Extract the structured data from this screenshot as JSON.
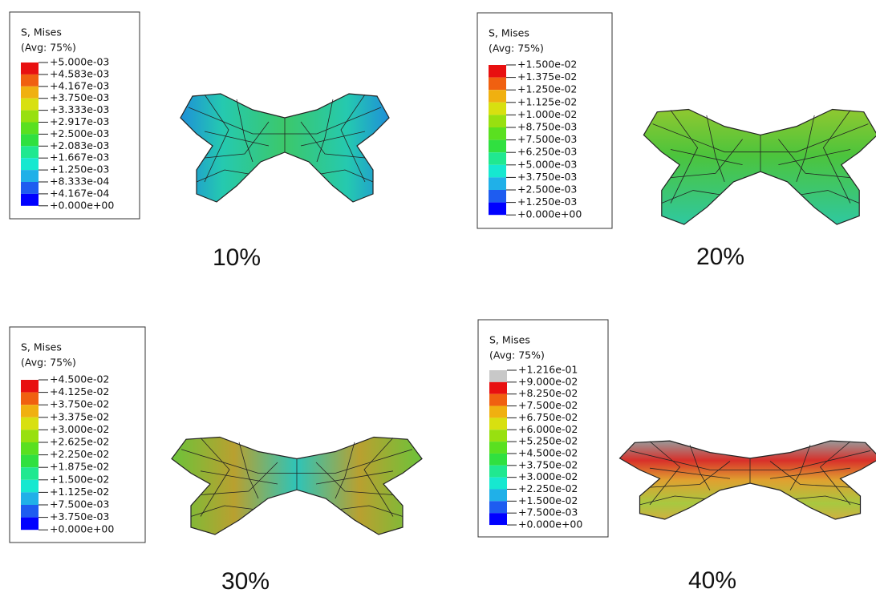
{
  "panels": [
    {
      "legend_title": "S, Mises",
      "legend_subtitle": "(Avg: 75%)",
      "caption": "10%",
      "labels": [
        "+5.000e-03",
        "+4.583e-03",
        "+4.167e-03",
        "+3.750e-03",
        "+3.333e-03",
        "+2.917e-03",
        "+2.500e-03",
        "+2.083e-03",
        "+1.667e-03",
        "+1.250e-03",
        "+8.333e-04",
        "+4.167e-04",
        "+0.000e+00"
      ]
    },
    {
      "legend_title": "S, Mises",
      "legend_subtitle": "(Avg: 75%)",
      "caption": "20%",
      "labels": [
        "+1.500e-02",
        "+1.375e-02",
        "+1.250e-02",
        "+1.125e-02",
        "+1.000e-02",
        "+8.750e-03",
        "+7.500e-03",
        "+6.250e-03",
        "+5.000e-03",
        "+3.750e-03",
        "+2.500e-03",
        "+1.250e-03",
        "+0.000e+00"
      ]
    },
    {
      "legend_title": "S, Mises",
      "legend_subtitle": "(Avg: 75%)",
      "caption": "30%",
      "labels": [
        "+4.500e-02",
        "+4.125e-02",
        "+3.750e-02",
        "+3.375e-02",
        "+3.000e-02",
        "+2.625e-02",
        "+2.250e-02",
        "+1.875e-02",
        "+1.500e-02",
        "+1.125e-02",
        "+7.500e-03",
        "+3.750e-03",
        "+0.000e+00"
      ]
    },
    {
      "legend_title": "S, Mises",
      "legend_subtitle": "(Avg: 75%)",
      "caption": "40%",
      "labels": [
        "+1.216e-01",
        "+9.000e-02",
        "+8.250e-02",
        "+7.500e-02",
        "+6.750e-02",
        "+6.000e-02",
        "+5.250e-02",
        "+4.500e-02",
        "+3.750e-02",
        "+3.000e-02",
        "+2.250e-02",
        "+1.500e-02",
        "+7.500e-03",
        "+0.000e+00"
      ]
    }
  ]
}
